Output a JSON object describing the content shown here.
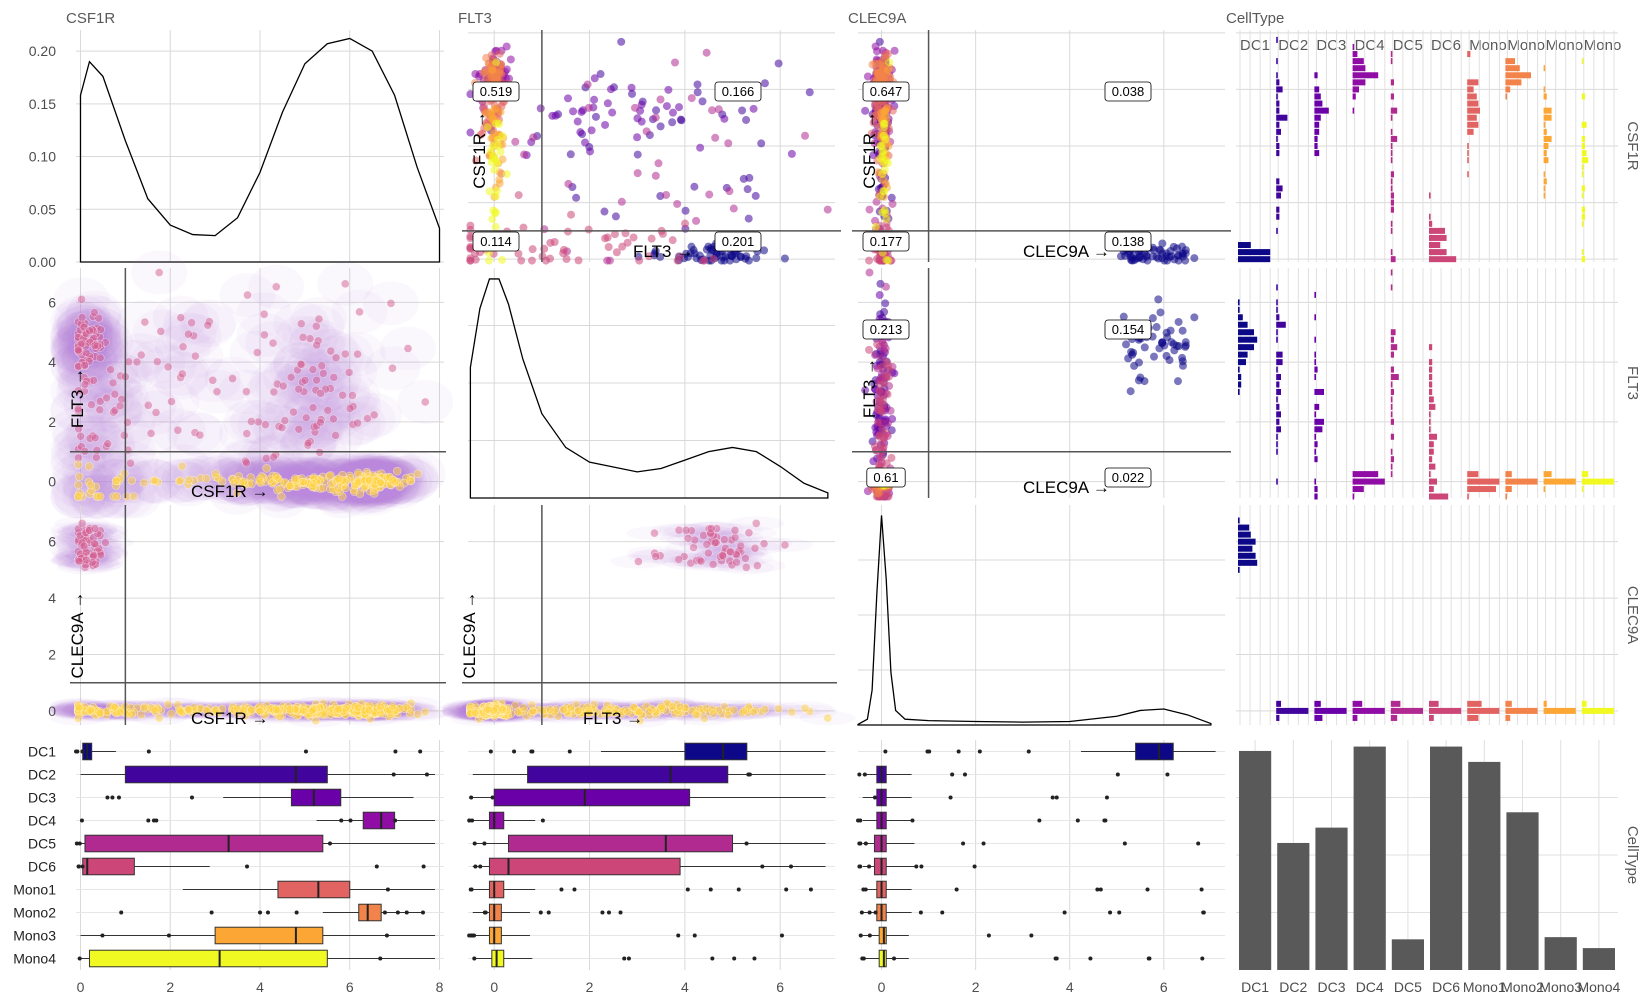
{
  "chart_data": {
    "type": "scatter",
    "variables": [
      "CSF1R",
      "FLT3",
      "CLEC9A",
      "CellType"
    ],
    "celltype_levels": [
      "DC1",
      "DC2",
      "DC3",
      "DC4",
      "DC5",
      "DC6",
      "Mono1",
      "Mono2",
      "Mono3",
      "Mono4"
    ],
    "celltype_tick_labels": [
      "DC1",
      "DC2",
      "DC3",
      "DC4",
      "DC5",
      "DC6",
      "Mono1",
      "Mono2",
      "Mono3",
      "Mono4"
    ],
    "celltype_top_strip_labels": [
      "DC1",
      "DC2",
      "DC3",
      "DC4",
      "DC5",
      "DC6",
      "Mono",
      "Mono",
      "Mono",
      "Mono"
    ],
    "palette": [
      "#0d0887",
      "#41049d",
      "#6a00a8",
      "#8f0da4",
      "#b12a90",
      "#cc4778",
      "#e16462",
      "#f2844b",
      "#fca636",
      "#f0f921"
    ],
    "gate_threshold": 1,
    "axis_arrow_labels": {
      "CSF1R": "CSF1R →",
      "FLT3": "FLT3 →",
      "CLEC9A": "CLEC9A →"
    },
    "axes": {
      "density_y_ticks": [
        "0.00",
        "0.05",
        "0.10",
        "0.15",
        "0.20"
      ],
      "density_y_range": [
        0,
        0.22
      ],
      "csf1r_ticks": [
        "0",
        "2",
        "4",
        "6",
        "8"
      ],
      "flt3_ticks": [
        "0",
        "2",
        "4",
        "6"
      ],
      "clec9a_ticks": [
        "0",
        "2",
        "4",
        "6"
      ]
    },
    "density_curves": {
      "CSF1R": {
        "x": [
          0,
          0.2,
          0.5,
          1,
          1.5,
          2,
          2.5,
          3,
          3.5,
          4,
          4.5,
          5,
          5.5,
          6,
          6.5,
          7,
          7.5,
          8
        ],
        "y": [
          0.158,
          0.19,
          0.176,
          0.115,
          0.06,
          0.035,
          0.026,
          0.025,
          0.042,
          0.085,
          0.142,
          0.188,
          0.207,
          0.212,
          0.2,
          0.158,
          0.09,
          0.032
        ]
      },
      "FLT3": {
        "x": [
          -0.5,
          -0.3,
          -0.1,
          0.1,
          0.3,
          0.6,
          1,
          1.5,
          2,
          3,
          3.5,
          4,
          4.5,
          5,
          5.5,
          6,
          6.5,
          7
        ],
        "y": [
          0.31,
          0.45,
          0.52,
          0.52,
          0.46,
          0.33,
          0.2,
          0.12,
          0.085,
          0.062,
          0.07,
          0.09,
          0.11,
          0.12,
          0.11,
          0.075,
          0.035,
          0.012
        ]
      },
      "CLEC9A": {
        "x": [
          -0.5,
          -0.3,
          -0.2,
          -0.1,
          0,
          0.1,
          0.2,
          0.3,
          0.5,
          1,
          2,
          3,
          4,
          5,
          5.5,
          6,
          6.5,
          7
        ],
        "y": [
          0.002,
          0.02,
          0.12,
          0.45,
          0.72,
          0.5,
          0.18,
          0.05,
          0.02,
          0.015,
          0.012,
          0.01,
          0.012,
          0.03,
          0.05,
          0.055,
          0.035,
          0.005
        ]
      }
    },
    "quadrant_fractions": {
      "FLT3_vs_CSF1R": {
        "top_left": "0.519",
        "top_right": "0.166",
        "bottom_left": "0.114",
        "bottom_right": "0.201"
      },
      "CLEC9A_vs_CSF1R": {
        "top_left": "0.647",
        "top_right": "0.038",
        "bottom_left": "0.177",
        "bottom_right": "0.138"
      },
      "CLEC9A_vs_FLT3": {
        "top_left": "0.213",
        "top_right": "0.154",
        "bottom_left": "0.61",
        "bottom_right": "0.022"
      }
    },
    "boxplots": {
      "CSF1R": [
        [
          0.05,
          0.15,
          0.25
        ],
        [
          1,
          4.8,
          5.5
        ],
        [
          4.7,
          5.2,
          5.8
        ],
        [
          6.3,
          6.7,
          7
        ],
        [
          0.1,
          3.3,
          5.4
        ],
        [
          0.05,
          0.15,
          1.2
        ],
        [
          4.4,
          5.3,
          6
        ],
        [
          6.2,
          6.4,
          6.7
        ],
        [
          3,
          4.8,
          5.4
        ],
        [
          0.2,
          3.1,
          5.5
        ]
      ],
      "FLT3": [
        [
          4,
          4.8,
          5.3
        ],
        [
          0.7,
          3.7,
          4.9
        ],
        [
          0,
          1.9,
          4.1
        ],
        [
          -0.1,
          0,
          0.2
        ],
        [
          0.3,
          3.6,
          5
        ],
        [
          -0.1,
          0.3,
          3.9
        ],
        [
          -0.1,
          0,
          0.2
        ],
        [
          -0.1,
          0,
          0.15
        ],
        [
          -0.1,
          0,
          0.15
        ],
        [
          -0.05,
          0.05,
          0.2
        ]
      ],
      "CLEC9A": [
        [
          5.4,
          5.9,
          6.2
        ],
        [
          -0.1,
          0,
          0.1
        ],
        [
          -0.1,
          0,
          0.1
        ],
        [
          -0.1,
          0,
          0.1
        ],
        [
          -0.15,
          0,
          0.1
        ],
        [
          -0.15,
          0,
          0.1
        ],
        [
          -0.1,
          0,
          0.1
        ],
        [
          -0.1,
          0,
          0.1
        ],
        [
          -0.05,
          0.05,
          0.1
        ],
        [
          -0.05,
          0.05,
          0.1
        ]
      ]
    },
    "celltype_counts": [
      100,
      58,
      65,
      102,
      14,
      102,
      95,
      72,
      15,
      10
    ],
    "count_axis_range": [
      0,
      105
    ]
  }
}
